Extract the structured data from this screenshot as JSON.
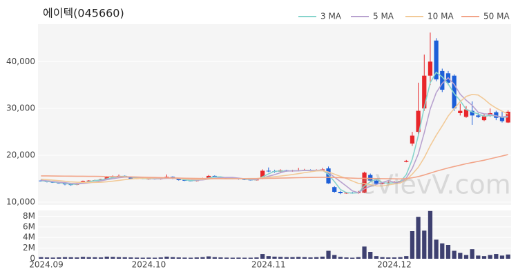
{
  "chart_data": [
    {
      "type": "candlestick",
      "title": "에이텍(045660)",
      "watermark": "eVievV.com",
      "up_color": "#e8262a",
      "down_color": "#1d5fd8",
      "open": [
        14600,
        14500,
        14300,
        14200,
        14000,
        13800,
        13700,
        14000,
        14500,
        14600,
        14700,
        14900,
        15300,
        15500,
        15600,
        15400,
        15000,
        15100,
        15000,
        15000,
        14900,
        15100,
        15400,
        15000,
        14700,
        14600,
        14500,
        14800,
        15100,
        15600,
        15400,
        15200,
        15000,
        15100,
        14900,
        14800,
        14700,
        15000,
        16700,
        16600,
        16500,
        16800,
        16600,
        16700,
        16800,
        16900,
        16700,
        16800,
        17200,
        13200,
        12200,
        11900,
        12000,
        11900,
        12000,
        15800,
        14600,
        13900,
        14000,
        14200,
        14300,
        18600,
        22500,
        25000,
        30000,
        37000,
        44500,
        38000,
        37500,
        37000,
        29000,
        28200,
        29500,
        28500,
        27500,
        28500,
        29200,
        28200,
        27000
      ],
      "high": [
        14800,
        14600,
        14400,
        14300,
        14100,
        13900,
        14100,
        14600,
        14700,
        14800,
        15000,
        15400,
        15700,
        15900,
        15700,
        15500,
        15200,
        15200,
        15200,
        15100,
        15200,
        15900,
        15500,
        15100,
        14800,
        14700,
        14900,
        15200,
        15800,
        15700,
        15500,
        15300,
        15200,
        15200,
        15000,
        14900,
        14900,
        17000,
        17400,
        16900,
        17000,
        16900,
        16900,
        17300,
        17100,
        17000,
        17000,
        17300,
        17600,
        13400,
        12400,
        12200,
        12200,
        12400,
        16500,
        16100,
        14800,
        14200,
        14400,
        14500,
        14600,
        19000,
        25000,
        35500,
        41500,
        46200,
        45000,
        38500,
        38000,
        37300,
        31000,
        30500,
        31500,
        29000,
        28800,
        30000,
        29500,
        29500,
        29600
      ],
      "low": [
        14400,
        14200,
        14100,
        13900,
        13600,
        13500,
        13600,
        13900,
        14400,
        14500,
        14600,
        14800,
        15200,
        15300,
        15300,
        14900,
        14900,
        14900,
        14800,
        14800,
        14800,
        15000,
        14900,
        14600,
        14500,
        14400,
        14400,
        14700,
        15000,
        15300,
        15100,
        14900,
        14900,
        14800,
        14700,
        14600,
        14600,
        14900,
        16400,
        16300,
        16400,
        16500,
        16500,
        16600,
        16700,
        16600,
        16600,
        16700,
        13900,
        12000,
        11700,
        11800,
        11800,
        11800,
        11900,
        14500,
        13700,
        13800,
        13900,
        14000,
        14200,
        18500,
        22000,
        24500,
        29500,
        35000,
        35800,
        33500,
        35000,
        29500,
        28500,
        28000,
        26500,
        28000,
        27300,
        28200,
        27500,
        27000,
        26900
      ],
      "close": [
        14500,
        14300,
        14200,
        14000,
        13800,
        13700,
        14000,
        14500,
        14600,
        14700,
        14900,
        15300,
        15500,
        15600,
        15400,
        15000,
        15100,
        15000,
        15000,
        14900,
        15100,
        15400,
        15000,
        14700,
        14600,
        14500,
        14800,
        15100,
        15600,
        15400,
        15200,
        15000,
        15100,
        14900,
        14800,
        14700,
        14800,
        16700,
        16600,
        16500,
        16800,
        16600,
        16700,
        16800,
        16900,
        16700,
        16800,
        17000,
        14000,
        12200,
        11900,
        12000,
        11900,
        12100,
        16300,
        14600,
        13900,
        14000,
        14200,
        14300,
        14500,
        18800,
        24200,
        29500,
        37000,
        40000,
        36200,
        34000,
        35500,
        30000,
        29500,
        29800,
        28500,
        28200,
        28300,
        29000,
        28000,
        27300,
        29300
      ],
      "series": [
        {
          "name": "3 MA",
          "color": "#86d4cc",
          "values": [
            14600,
            14400,
            14330,
            14170,
            14000,
            13830,
            13830,
            14070,
            14370,
            14600,
            14730,
            14970,
            15230,
            15470,
            15500,
            15330,
            15170,
            15030,
            15030,
            14970,
            15000,
            15130,
            15170,
            15030,
            14770,
            14600,
            14630,
            14800,
            15170,
            15370,
            15400,
            15200,
            15100,
            15000,
            14930,
            14800,
            14770,
            15400,
            16030,
            16600,
            16630,
            16630,
            16700,
            16700,
            16800,
            16800,
            16800,
            16830,
            15930,
            14400,
            12700,
            12030,
            11930,
            12000,
            13430,
            14330,
            14930,
            14170,
            14030,
            14170,
            14330,
            15870,
            19170,
            24170,
            30230,
            35500,
            37730,
            36730,
            35230,
            33170,
            31670,
            29770,
            29270,
            28830,
            28330,
            28500,
            28430,
            28100,
            28200
          ]
        },
        {
          "name": "5 MA",
          "color": "#b8a2cf",
          "values": [
            14700,
            14550,
            14400,
            14250,
            14160,
            14000,
            13940,
            14000,
            14120,
            14300,
            14540,
            14800,
            15000,
            15200,
            15340,
            15360,
            15320,
            15220,
            15100,
            15000,
            15020,
            15080,
            15080,
            15020,
            14960,
            14840,
            14720,
            14740,
            14920,
            15080,
            15220,
            15260,
            15260,
            15120,
            15000,
            14900,
            14860,
            15180,
            15520,
            15860,
            16280,
            16640,
            16640,
            16680,
            16760,
            16740,
            16780,
            16840,
            16280,
            15340,
            14380,
            13420,
            12400,
            12020,
            12840,
            13380,
            13760,
            14180,
            14600,
            14200,
            14180,
            15160,
            17200,
            20260,
            24800,
            29900,
            33380,
            35340,
            36540,
            35140,
            33040,
            31760,
            30660,
            29200,
            28860,
            28760,
            28400,
            28160,
            28380
          ]
        },
        {
          "name": "10 MA",
          "color": "#f2ca98",
          "values": [
            14900,
            14800,
            14700,
            14580,
            14450,
            14320,
            14250,
            14220,
            14200,
            14210,
            14250,
            14350,
            14480,
            14640,
            14800,
            14930,
            15040,
            15090,
            15130,
            15150,
            15170,
            15180,
            15130,
            15040,
            14960,
            14910,
            14880,
            14890,
            14950,
            15000,
            15010,
            14970,
            14980,
            15000,
            15020,
            15040,
            15040,
            15200,
            15300,
            15410,
            15570,
            15730,
            15890,
            16080,
            16290,
            16470,
            16670,
            16700,
            16440,
            15980,
            15490,
            15030,
            14510,
            14000,
            13940,
            13730,
            13450,
            13450,
            13670,
            13880,
            14080,
            14760,
            15990,
            17430,
            19500,
            22040,
            24270,
            26270,
            28400,
            29970,
            31470,
            32570,
            33000,
            32870,
            32000,
            30900,
            30080,
            29410,
            28790
          ]
        },
        {
          "name": "50 MA",
          "color": "#f2a488",
          "values": [
            15600,
            15590,
            15580,
            15560,
            15550,
            15540,
            15530,
            15520,
            15510,
            15500,
            15480,
            15460,
            15440,
            15420,
            15400,
            15380,
            15350,
            15320,
            15290,
            15260,
            15230,
            15200,
            15170,
            15140,
            15110,
            15090,
            15070,
            15050,
            15040,
            15030,
            15020,
            15010,
            15000,
            15000,
            15000,
            15000,
            15010,
            15040,
            15070,
            15100,
            15130,
            15160,
            15190,
            15220,
            15250,
            15270,
            15290,
            15310,
            15300,
            15260,
            15220,
            15170,
            15120,
            15070,
            15080,
            15060,
            15030,
            15010,
            14990,
            14970,
            14950,
            15030,
            15200,
            15450,
            15800,
            16200,
            16600,
            16950,
            17300,
            17600,
            17900,
            18200,
            18450,
            18700,
            18950,
            19250,
            19550,
            19850,
            20150
          ]
        }
      ],
      "ylim": [
        9400,
        48000
      ],
      "yticks": [
        {
          "value": 10000,
          "label": "10,000"
        },
        {
          "value": 20000,
          "label": "20,000"
        },
        {
          "value": 30000,
          "label": "30,000"
        },
        {
          "value": 40000,
          "label": "40,000"
        }
      ],
      "grid": true
    },
    {
      "type": "bar",
      "color": "#3e4070",
      "categories": [
        "2024.09",
        null,
        null,
        null,
        null,
        null,
        null,
        null,
        null,
        null,
        null,
        null,
        null,
        null,
        null,
        null,
        null,
        null,
        "2024.10",
        null,
        null,
        null,
        null,
        null,
        null,
        null,
        null,
        null,
        null,
        null,
        null,
        null,
        null,
        null,
        null,
        null,
        null,
        null,
        "2024.11",
        null,
        null,
        null,
        null,
        null,
        null,
        null,
        null,
        null,
        null,
        null,
        null,
        null,
        null,
        null,
        null,
        null,
        null,
        null,
        null,
        "2024.12",
        null,
        null,
        null,
        null,
        null,
        null,
        null,
        null,
        null,
        null,
        null,
        null,
        null,
        null,
        null,
        null,
        null,
        null,
        null
      ],
      "values": [
        300000,
        250000,
        220000,
        260000,
        300000,
        280000,
        250000,
        350000,
        300000,
        280000,
        250000,
        400000,
        350000,
        300000,
        280000,
        250000,
        220000,
        200000,
        220000,
        200000,
        250000,
        400000,
        300000,
        250000,
        220000,
        200000,
        250000,
        300000,
        450000,
        300000,
        250000,
        220000,
        200000,
        220000,
        200000,
        200000,
        250000,
        900000,
        500000,
        400000,
        350000,
        300000,
        300000,
        350000,
        300000,
        250000,
        300000,
        400000,
        1500000,
        700000,
        350000,
        250000,
        200000,
        300000,
        2300000,
        1300000,
        500000,
        300000,
        250000,
        250000,
        300000,
        500000,
        5200000,
        7900000,
        5300000,
        9000000,
        3600000,
        2900000,
        2600000,
        1500000,
        1100000,
        700000,
        1800000,
        600000,
        500000,
        700000,
        900000,
        600000,
        800000
      ],
      "ylim": [
        0,
        9100000
      ],
      "yticks": [
        0,
        {
          "value": 2000000,
          "label": "2M"
        },
        {
          "value": 4000000,
          "label": "4M"
        },
        {
          "value": 6000000,
          "label": "6M"
        },
        {
          "value": 8000000,
          "label": "8M"
        }
      ],
      "grid": true
    }
  ]
}
